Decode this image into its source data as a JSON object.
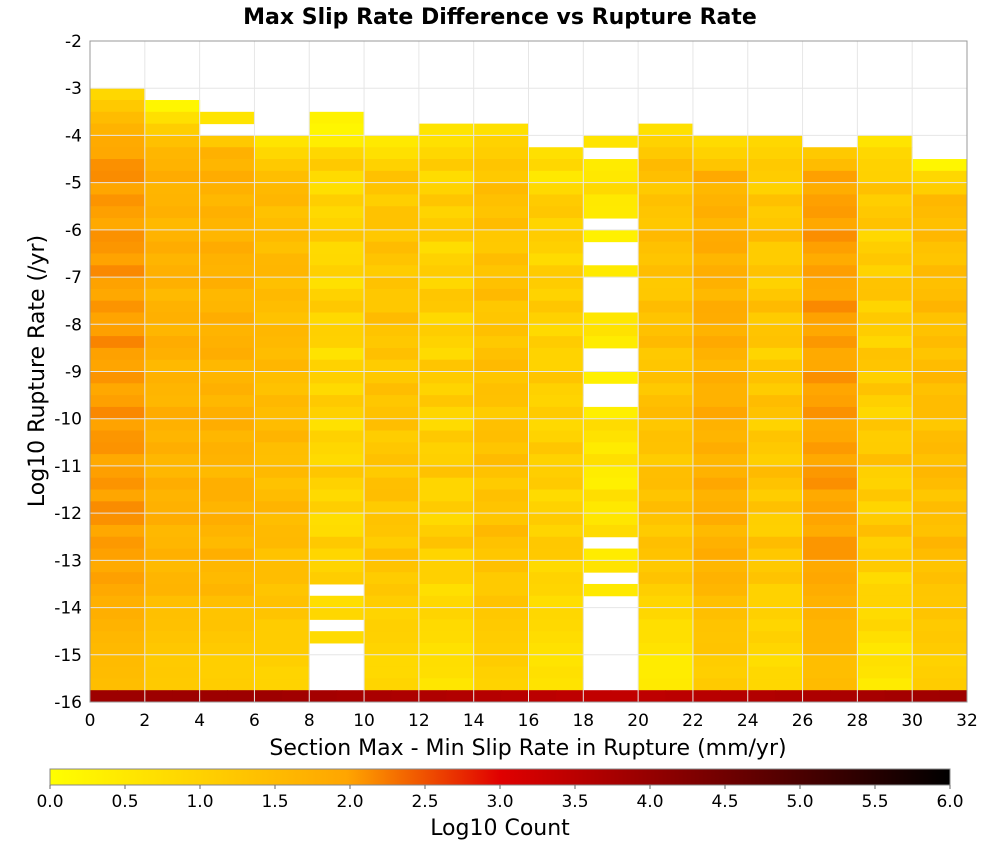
{
  "chart_data": {
    "type": "heatmap",
    "title": "Max Slip Rate Difference vs Rupture Rate",
    "xlabel": "Section Max - Min Slip Rate in Rupture (mm/yr)",
    "ylabel": "Log10 Rupture Rate (/yr)",
    "xlim": [
      0,
      32
    ],
    "ylim": [
      -16,
      -2
    ],
    "x_ticks": [
      "0",
      "2",
      "4",
      "6",
      "8",
      "10",
      "12",
      "14",
      "16",
      "18",
      "20",
      "22",
      "24",
      "26",
      "28",
      "30",
      "32"
    ],
    "y_ticks": [
      "-2",
      "-3",
      "-4",
      "-5",
      "-6",
      "-7",
      "-8",
      "-9",
      "-10",
      "-11",
      "-12",
      "-13",
      "-14",
      "-15",
      "-16"
    ],
    "grid": true,
    "bin_width_x": 2,
    "bin_height_y": 0.25,
    "colorbar": {
      "label": "Log10 Count",
      "range": [
        0,
        6
      ],
      "ticks": [
        "0.0",
        "0.5",
        "1.0",
        "1.5",
        "2.0",
        "2.5",
        "3.0",
        "3.5",
        "4.0",
        "4.5",
        "5.0",
        "5.5",
        "6.0"
      ],
      "colors": [
        "#ffff00",
        "#ffa500",
        "#e00000",
        "#000000"
      ]
    },
    "columns": [
      {
        "x_start": 0,
        "y_top": -3.0,
        "base": 2.05,
        "amp": 0.1,
        "low_base": 1.45,
        "top_vals": [
          0.9,
          1.2,
          1.5,
          1.7,
          1.9
        ],
        "empty": []
      },
      {
        "x_start": 2,
        "y_top": -3.25,
        "base": 1.7,
        "amp": 0.12,
        "low_base": 1.15,
        "top_vals": [
          0.2,
          0.7,
          1.1,
          1.4
        ],
        "empty": []
      },
      {
        "x_start": 4,
        "y_top": -3.5,
        "base": 1.7,
        "amp": 0.12,
        "low_base": 1.05,
        "top_vals": [
          0.6,
          1.0,
          1.2
        ],
        "empty": [
          [
            -4.0,
            -3.75
          ]
        ]
      },
      {
        "x_start": 6,
        "y_top": -4.0,
        "base": 1.5,
        "amp": 0.12,
        "low_base": 1.0,
        "top_vals": [
          0.6,
          0.9,
          1.2
        ],
        "empty": []
      },
      {
        "x_start": 8,
        "y_top": -3.5,
        "base": 0.95,
        "amp": 0.22,
        "low_base": 0.7,
        "top_vals": [
          0.3,
          0.2,
          0.4
        ],
        "empty": [
          [
            -13.75,
            -13.5
          ],
          [
            -14.5,
            -14.25
          ],
          [
            -15.75,
            -14.75
          ]
        ]
      },
      {
        "x_start": 10,
        "y_top": -4.0,
        "base": 1.3,
        "amp": 0.15,
        "low_base": 0.85,
        "top_vals": [
          0.5,
          0.7,
          1.0
        ],
        "empty": []
      },
      {
        "x_start": 12,
        "y_top": -3.75,
        "base": 1.05,
        "amp": 0.22,
        "low_base": 0.65,
        "top_vals": [
          0.6,
          0.7,
          0.9
        ],
        "empty": []
      },
      {
        "x_start": 14,
        "y_top": -3.75,
        "base": 1.35,
        "amp": 0.15,
        "low_base": 1.05,
        "top_vals": [
          0.7,
          1.0,
          1.1
        ],
        "empty": []
      },
      {
        "x_start": 16,
        "y_top": -4.25,
        "base": 1.05,
        "amp": 0.18,
        "low_base": 0.6,
        "top_vals": [
          0.7,
          0.9,
          0.5
        ],
        "empty": []
      },
      {
        "x_start": 18,
        "y_top": -4.0,
        "base": 0.55,
        "amp": 0.2,
        "low_base": 0.3,
        "top_vals": [
          0.6,
          0.3
        ],
        "empty": [
          [
            -4.5,
            -4.25
          ],
          [
            -6.0,
            -5.75
          ],
          [
            -6.75,
            -6.25
          ],
          [
            -7.75,
            -7.0
          ],
          [
            -9.0,
            -8.5
          ],
          [
            -9.75,
            -9.25
          ],
          [
            -12.75,
            -12.5
          ],
          [
            -13.5,
            -13.25
          ],
          [
            -15.75,
            -13.75
          ]
        ]
      },
      {
        "x_start": 20,
        "y_top": -3.75,
        "base": 1.35,
        "amp": 0.15,
        "low_base": 0.4,
        "top_vals": [
          0.7,
          1.0,
          1.2
        ],
        "empty": []
      },
      {
        "x_start": 22,
        "y_top": -4.0,
        "base": 1.75,
        "amp": 0.15,
        "low_base": 1.1,
        "top_vals": [
          0.8,
          1.0,
          1.3
        ],
        "empty": []
      },
      {
        "x_start": 24,
        "y_top": -4.0,
        "base": 1.25,
        "amp": 0.22,
        "low_base": 0.8,
        "top_vals": [
          0.9,
          1.0,
          1.2
        ],
        "empty": []
      },
      {
        "x_start": 26,
        "y_top": -4.25,
        "base": 2.0,
        "amp": 0.12,
        "low_base": 1.45,
        "top_vals": [
          1.2,
          1.5
        ],
        "empty": []
      },
      {
        "x_start": 28,
        "y_top": -4.0,
        "base": 1.15,
        "amp": 0.22,
        "low_base": 0.55,
        "top_vals": [
          0.6,
          0.9,
          1.0
        ],
        "empty": []
      },
      {
        "x_start": 30,
        "y_top": -4.5,
        "base": 1.45,
        "amp": 0.15,
        "low_base": 1.05,
        "top_vals": [
          0.2,
          0.9,
          1.1
        ],
        "empty": []
      }
    ],
    "bottom_row": {
      "y": -15.75,
      "value": 3.9,
      "center_value": 3.4
    }
  }
}
